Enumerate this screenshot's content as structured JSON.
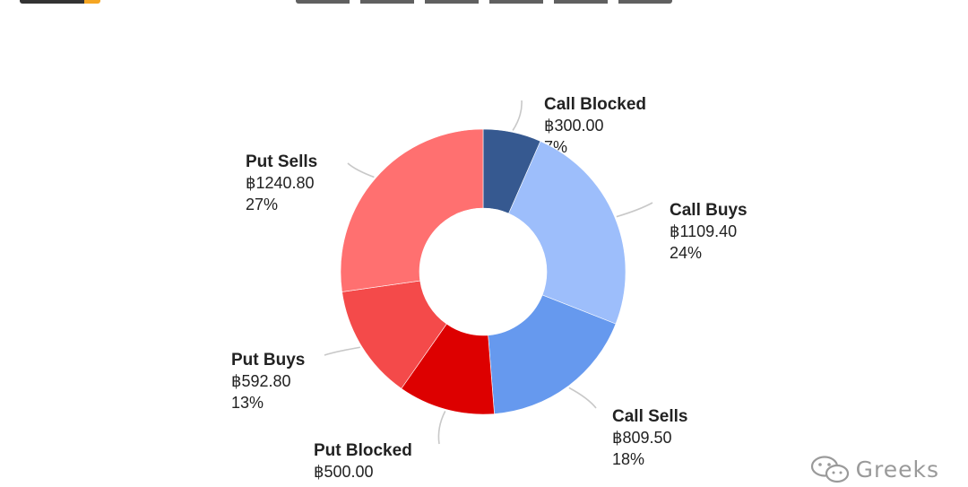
{
  "chart_data": {
    "type": "pie",
    "categories": [
      "Call Blocked",
      "Call Buys",
      "Call Sells",
      "Put Blocked",
      "Put Buys",
      "Put Sells"
    ],
    "values": [
      300.0,
      1109.4,
      809.5,
      500.0,
      592.8,
      1240.8
    ],
    "value_labels": [
      "฿300.00",
      "฿1109.40",
      "฿809.50",
      "฿500.00",
      "฿592.80",
      "฿1240.80"
    ],
    "percent_labels": [
      "7%",
      "24%",
      "18%",
      "",
      "13%",
      "27%"
    ],
    "colors": [
      "#365990",
      "#9dbefb",
      "#6699ee",
      "#dd0000",
      "#f44a4a",
      "#ff7070"
    ],
    "donut": true
  },
  "watermark": {
    "text": "Greeks",
    "icon": "wechat-icon"
  }
}
